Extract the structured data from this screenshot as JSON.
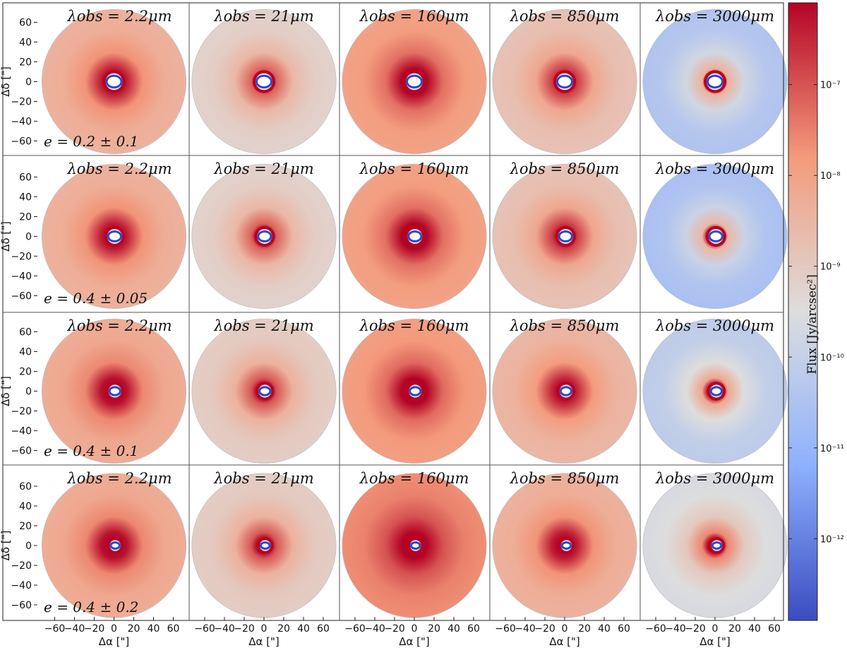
{
  "chart_data": {
    "type": "heatmap",
    "description_free": true,
    "xlabel": "Δα [\"]",
    "ylabel": "Δδ [\"]",
    "xlim": [
      -75,
      75
    ],
    "ylim": [
      -75,
      75
    ],
    "xticks": [
      "−60",
      "−40",
      "−20",
      "0",
      "20",
      "40",
      "60"
    ],
    "xtick_values": [
      -60,
      -40,
      -20,
      0,
      20,
      40,
      60
    ],
    "yticks": [
      "60",
      "40",
      "20",
      "0",
      "−20",
      "−40",
      "−60"
    ],
    "ytick_values": [
      60,
      40,
      20,
      0,
      -20,
      -40,
      -60
    ],
    "column_titles": [
      "λobs = 2.2μm",
      "λobs = 21μm",
      "λobs = 160μm",
      "λobs = 850μm",
      "λobs = 3000μm"
    ],
    "row_labels": [
      "e = 0.2 ± 0.1",
      "e = 0.4 ± 0.05",
      "e = 0.4 ± 0.1",
      "e = 0.4 ± 0.2"
    ],
    "disk_outer_radius_arcsec": 73,
    "inner_hole_radius_arcsec": [
      6.5,
      5.5,
      4.5,
      3.5
    ],
    "hole_center_offset_arcsec": [
      0,
      1,
      1.5,
      2
    ],
    "outer_level": [
      [
        0.66,
        0.54,
        0.72,
        0.6,
        0.36
      ],
      [
        0.66,
        0.54,
        0.72,
        0.6,
        0.34
      ],
      [
        0.68,
        0.56,
        0.73,
        0.64,
        0.4
      ],
      [
        0.68,
        0.56,
        0.77,
        0.66,
        0.48
      ]
    ],
    "colorbar": {
      "label": "Flux [Jy/arcsec²]",
      "scale": "log",
      "ticks": [
        "10⁻⁷",
        "10⁻⁸",
        "10⁻⁹",
        "10⁻¹⁰",
        "10⁻¹¹",
        "10⁻¹²"
      ],
      "tick_log_values": [
        -7,
        -8,
        -9,
        -10,
        -11,
        -12
      ],
      "log_range": [
        -12.9,
        -6.1
      ],
      "colormap": "coolwarm"
    }
  }
}
